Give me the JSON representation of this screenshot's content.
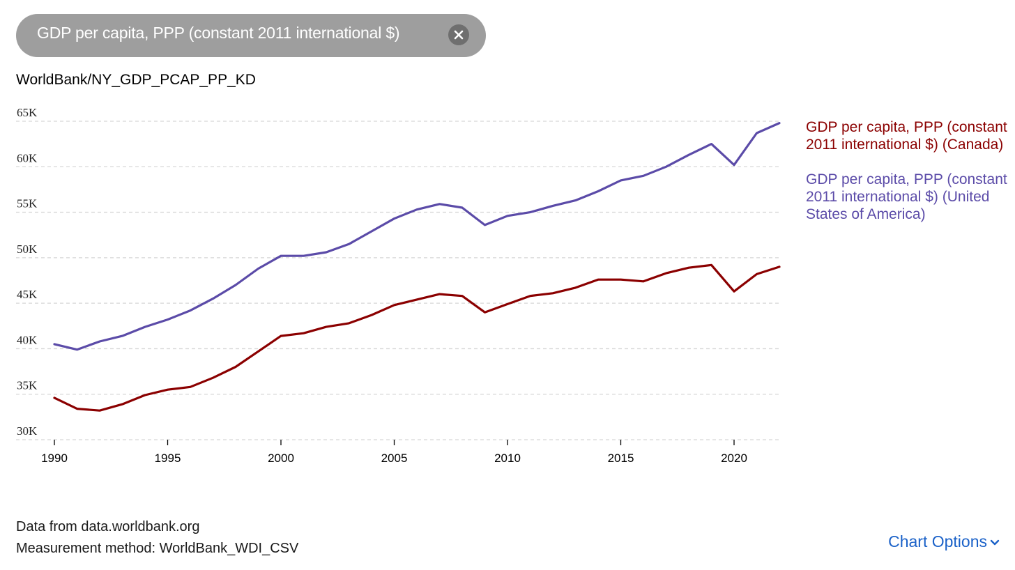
{
  "chip": {
    "label": "GDP per capita, PPP (constant 2011 international $)",
    "close_icon": "close-circle-icon"
  },
  "dataset_id": "WorldBank/NY_GDP_PCAP_PP_KD",
  "footer": {
    "source": "Data from data.worldbank.org",
    "method": "Measurement method: WorldBank_WDI_CSV"
  },
  "chart_options": {
    "label": "Chart Options",
    "icon": "chevron-down-icon"
  },
  "colors": {
    "canada": "#8b0000",
    "usa": "#5b4ba8",
    "grid": "#d6d6d6",
    "link": "#1a61c8"
  },
  "chart_data": {
    "type": "line",
    "x": [
      1990,
      1991,
      1992,
      1993,
      1994,
      1995,
      1996,
      1997,
      1998,
      1999,
      2000,
      2001,
      2002,
      2003,
      2004,
      2005,
      2006,
      2007,
      2008,
      2009,
      2010,
      2011,
      2012,
      2013,
      2014,
      2015,
      2016,
      2017,
      2018,
      2019,
      2020,
      2021,
      2022
    ],
    "x_ticks": [
      "1990",
      "1995",
      "2000",
      "2005",
      "2010",
      "2015",
      "2020"
    ],
    "y_ticks": [
      "30K",
      "35K",
      "40K",
      "45K",
      "50K",
      "55K",
      "60K",
      "65K"
    ],
    "ylim": [
      30000,
      65000
    ],
    "grid": true,
    "legend_position": "right",
    "series": [
      {
        "name": "GDP per capita, PPP (constant 2011 international $) (Canada)",
        "color": "#8b0000",
        "values": [
          34600,
          33400,
          33200,
          33900,
          34900,
          35500,
          35800,
          36800,
          38000,
          39700,
          41400,
          41700,
          42400,
          42800,
          43700,
          44800,
          45400,
          46000,
          45800,
          44000,
          44900,
          45800,
          46100,
          46700,
          47600,
          47600,
          47400,
          48300,
          48900,
          49200,
          46300,
          48200,
          49000
        ]
      },
      {
        "name": "GDP per capita, PPP (constant 2011 international $) (United States of America)",
        "color": "#5b4ba8",
        "values": [
          40500,
          39900,
          40800,
          41400,
          42400,
          43200,
          44200,
          45500,
          47000,
          48800,
          50200,
          50200,
          50600,
          51500,
          52900,
          54300,
          55300,
          55900,
          55500,
          53600,
          54600,
          55000,
          55700,
          56300,
          57300,
          58500,
          59000,
          60000,
          61300,
          62500,
          60200,
          63700,
          64800
        ]
      }
    ]
  }
}
